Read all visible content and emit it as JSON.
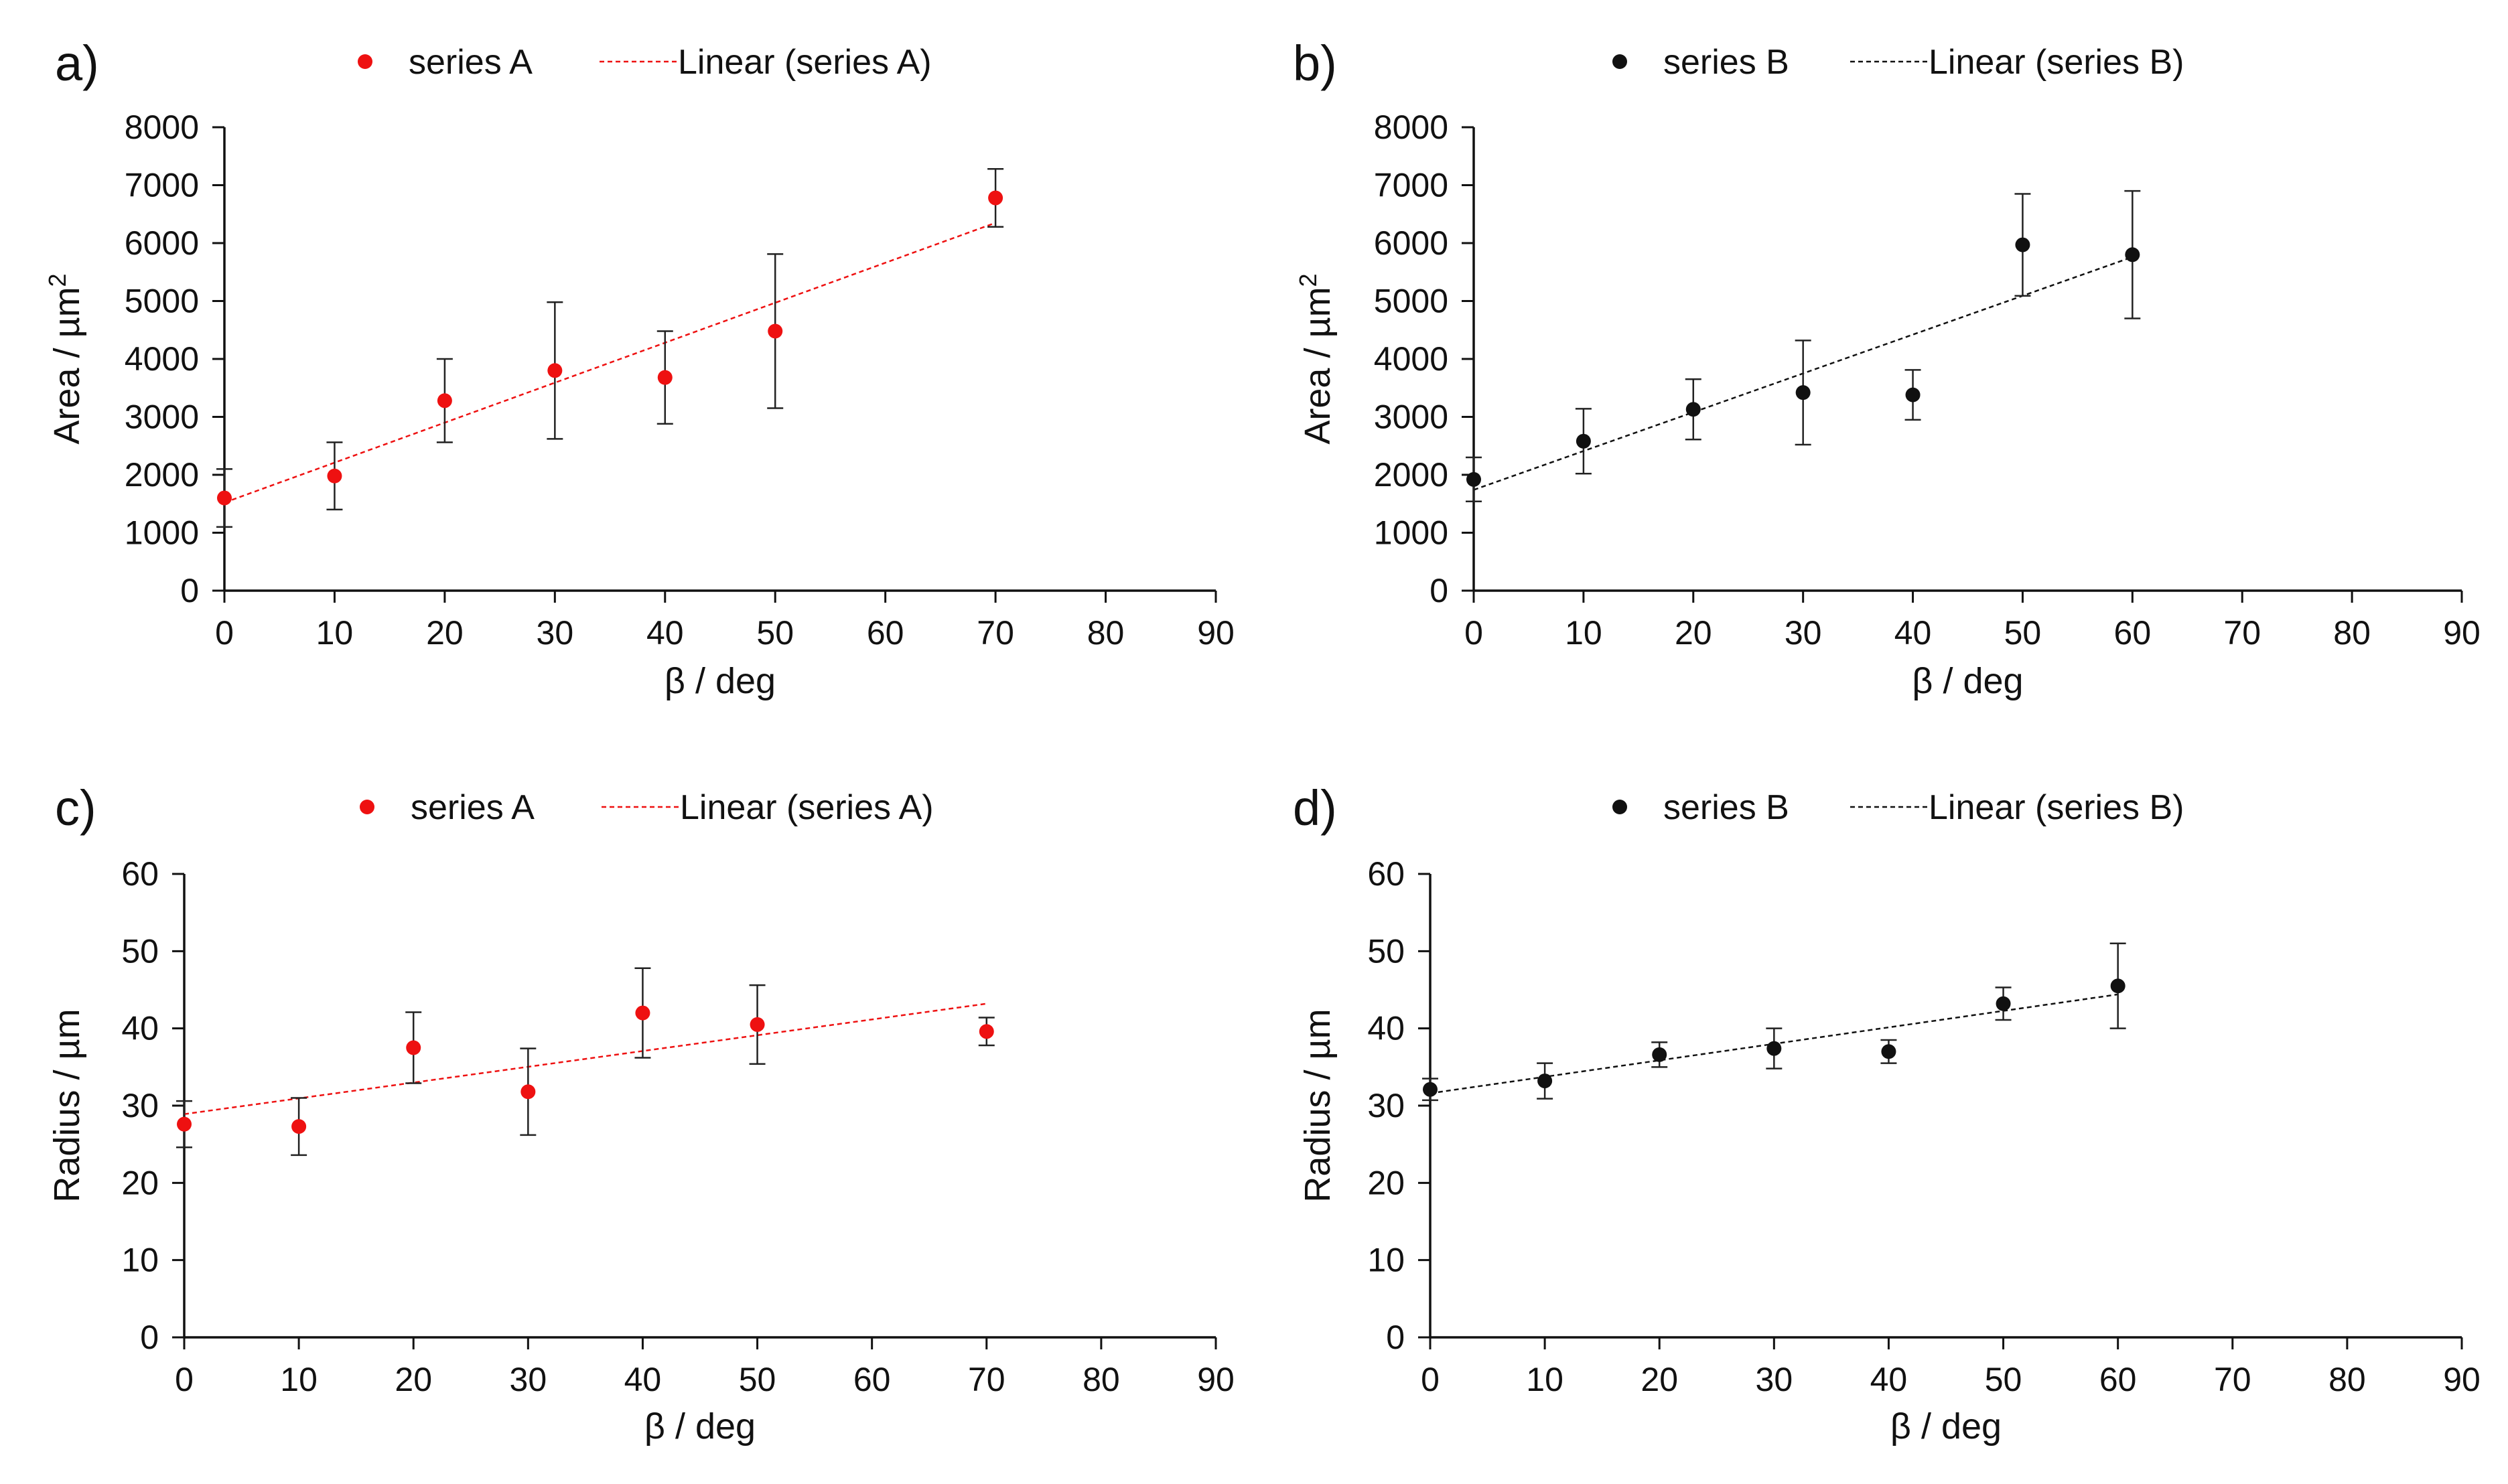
{
  "chart_data": [
    {
      "panel_label": "a)",
      "type": "scatter",
      "xlabel": "β / deg",
      "ylabel": "Area / µm",
      "ylabel_sup": "2",
      "xlim": [
        0,
        90
      ],
      "ylim": [
        0,
        8000
      ],
      "xticks": [
        0,
        10,
        20,
        30,
        40,
        50,
        60,
        70,
        80,
        90
      ],
      "yticks": [
        0,
        1000,
        2000,
        3000,
        4000,
        5000,
        6000,
        7000,
        8000
      ],
      "legend": {
        "position": "top",
        "marker_label": "series A",
        "trend_label": "Linear (series A)"
      },
      "color": "#ee1111",
      "series": [
        {
          "name": "series A",
          "x": [
            0,
            10,
            20,
            30,
            40,
            50,
            70
          ],
          "y": [
            1600,
            1980,
            3280,
            3800,
            3680,
            4480,
            6780
          ],
          "err": [
            500,
            580,
            720,
            1180,
            800,
            1330,
            500
          ]
        }
      ],
      "trendline": {
        "x": [
          0,
          70
        ],
        "y": [
          1520,
          6350
        ]
      }
    },
    {
      "panel_label": "b)",
      "type": "scatter",
      "xlabel": "β / deg",
      "ylabel": "Area / µm",
      "ylabel_sup": "2",
      "xlim": [
        0,
        90
      ],
      "ylim": [
        0,
        8000
      ],
      "xticks": [
        0,
        10,
        20,
        30,
        40,
        50,
        60,
        70,
        80,
        90
      ],
      "yticks": [
        0,
        1000,
        2000,
        3000,
        4000,
        5000,
        6000,
        7000,
        8000
      ],
      "legend": {
        "position": "top",
        "marker_label": "series B",
        "trend_label": "Linear (series B)"
      },
      "color": "#111111",
      "series": [
        {
          "name": "series B",
          "x": [
            0,
            10,
            20,
            30,
            40,
            50,
            60
          ],
          "y": [
            1920,
            2580,
            3130,
            3420,
            3380,
            5970,
            5800
          ],
          "err": [
            380,
            560,
            520,
            900,
            430,
            880,
            1100
          ]
        }
      ],
      "trendline": {
        "x": [
          0,
          60
        ],
        "y": [
          1740,
          5760
        ]
      }
    },
    {
      "panel_label": "c)",
      "type": "scatter",
      "xlabel": "β / deg",
      "ylabel": "Radius / µm",
      "xlim": [
        0,
        90
      ],
      "ylim": [
        0,
        60
      ],
      "xticks": [
        0,
        10,
        20,
        30,
        40,
        50,
        60,
        70,
        80,
        90
      ],
      "yticks": [
        0,
        10,
        20,
        30,
        40,
        50,
        60
      ],
      "legend": {
        "position": "top",
        "marker_label": "series A",
        "trend_label": "Linear (series A)"
      },
      "color": "#ee1111",
      "series": [
        {
          "name": "series A",
          "x": [
            0,
            10,
            20,
            30,
            40,
            50,
            70
          ],
          "y": [
            27.6,
            27.3,
            37.5,
            31.8,
            42.0,
            40.5,
            39.6
          ],
          "err": [
            3.0,
            3.7,
            4.6,
            5.6,
            5.8,
            5.1,
            1.8
          ]
        }
      ],
      "trendline": {
        "x": [
          0,
          70
        ],
        "y": [
          28.9,
          43.2
        ]
      }
    },
    {
      "panel_label": "d)",
      "type": "scatter",
      "xlabel": "β / deg",
      "ylabel": "Radius / µm",
      "xlim": [
        0,
        90
      ],
      "ylim": [
        0,
        60
      ],
      "xticks": [
        0,
        10,
        20,
        30,
        40,
        50,
        60,
        70,
        80,
        90
      ],
      "yticks": [
        0,
        10,
        20,
        30,
        40,
        50,
        60
      ],
      "legend": {
        "position": "top",
        "marker_label": "series B",
        "trend_label": "Linear (series B)"
      },
      "color": "#111111",
      "series": [
        {
          "name": "series B",
          "x": [
            0,
            10,
            20,
            30,
            40,
            50,
            60
          ],
          "y": [
            32.1,
            33.2,
            36.6,
            37.4,
            37.0,
            43.2,
            45.5
          ],
          "err": [
            1.4,
            2.3,
            1.6,
            2.6,
            1.5,
            2.1,
            5.5
          ]
        }
      ],
      "trendline": {
        "x": [
          0,
          60
        ],
        "y": [
          31.6,
          44.4
        ]
      }
    }
  ]
}
